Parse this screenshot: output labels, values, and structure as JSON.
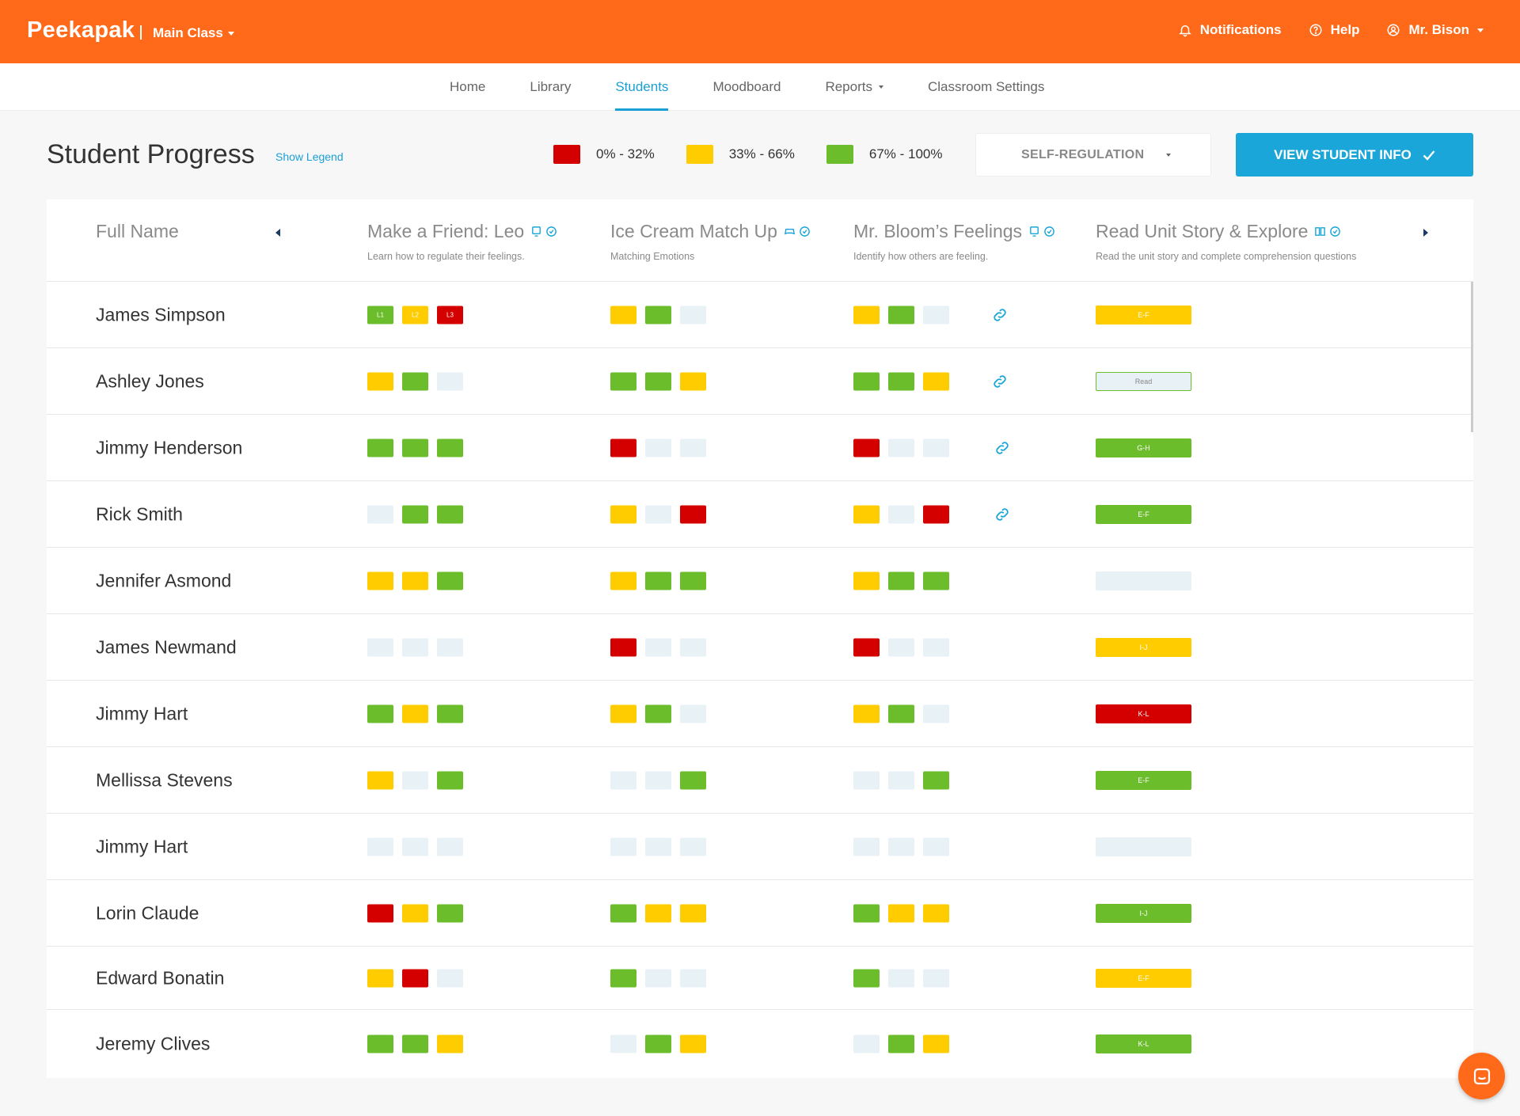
{
  "colors": {
    "red": "#d40000",
    "yellow": "#ffcc00",
    "green": "#6bbd2c",
    "empty": "#e8f1f6",
    "accent": "#1aa6d9",
    "brand": "#ff6a1a"
  },
  "header": {
    "brand": "Peekapak",
    "class_selector": "Main Class",
    "notifications": "Notifications",
    "help": "Help",
    "user": "Mr. Bison"
  },
  "nav": [
    {
      "label": "Home"
    },
    {
      "label": "Library"
    },
    {
      "label": "Students"
    },
    {
      "label": "Moodboard"
    },
    {
      "label": "Reports"
    },
    {
      "label": "Classroom Settings"
    }
  ],
  "page": {
    "title": "Student Progress",
    "show_legend": "Show Legend",
    "legend": [
      {
        "label": "0% - 32%",
        "color": "red"
      },
      {
        "label": "33% - 66%",
        "color": "yellow"
      },
      {
        "label": "67% - 100%",
        "color": "green"
      }
    ],
    "dropdown_value": "SELF-REGULATION",
    "view_button": "VIEW STUDENT INFO"
  },
  "table": {
    "name_header": "Full Name",
    "columns": [
      {
        "title": "Make a Friend: Leo",
        "subtitle": "Learn how to regulate their feelings."
      },
      {
        "title": "Ice Cream Match Up",
        "subtitle": "Matching Emotions"
      },
      {
        "title": "Mr. Bloom’s Feelings",
        "subtitle": "Identify how others are feeling."
      },
      {
        "title": "Read Unit Story & Explore",
        "subtitle": "Read the unit story and complete comprehension questions"
      }
    ],
    "rows": [
      {
        "name": "James Simpson",
        "c1": [
          "green:L1",
          "yellow:L2",
          "red:L3"
        ],
        "c2": [
          "yellow",
          "green",
          "empty"
        ],
        "c3": [
          "yellow",
          "green",
          "empty"
        ],
        "link": true,
        "read": {
          "color": "yellow",
          "label": "E-F"
        }
      },
      {
        "name": "Ashley Jones",
        "c1": [
          "yellow",
          "green",
          "empty"
        ],
        "c2": [
          "green",
          "green",
          "yellow"
        ],
        "c3": [
          "green",
          "green",
          "yellow"
        ],
        "link": true,
        "read": {
          "color": "outline",
          "label": "Read"
        }
      },
      {
        "name": "Jimmy Henderson",
        "c1": [
          "green",
          "green",
          "green"
        ],
        "c2": [
          "red",
          "empty",
          "empty"
        ],
        "c3": [
          "red",
          "empty",
          "empty"
        ],
        "link": true,
        "read": {
          "color": "green",
          "label": "G-H"
        }
      },
      {
        "name": "Rick Smith",
        "c1": [
          "empty",
          "green",
          "green"
        ],
        "c2": [
          "yellow",
          "empty",
          "red"
        ],
        "c3": [
          "yellow",
          "empty",
          "red"
        ],
        "link": true,
        "read": {
          "color": "green",
          "label": "E-F"
        }
      },
      {
        "name": "Jennifer Asmond",
        "c1": [
          "yellow",
          "yellow",
          "green"
        ],
        "c2": [
          "yellow",
          "green",
          "green"
        ],
        "c3": [
          "yellow",
          "green",
          "green"
        ],
        "link": false,
        "read": {
          "color": "empty",
          "label": ""
        }
      },
      {
        "name": "James Newmand",
        "c1": [
          "empty",
          "empty",
          "empty"
        ],
        "c2": [
          "red",
          "empty",
          "empty"
        ],
        "c3": [
          "red",
          "empty",
          "empty"
        ],
        "link": false,
        "read": {
          "color": "yellow",
          "label": "I-J"
        }
      },
      {
        "name": "Jimmy Hart",
        "c1": [
          "green",
          "yellow",
          "green"
        ],
        "c2": [
          "yellow",
          "green",
          "empty"
        ],
        "c3": [
          "yellow",
          "green",
          "empty"
        ],
        "link": false,
        "read": {
          "color": "red",
          "label": "K-L"
        }
      },
      {
        "name": "Mellissa Stevens",
        "c1": [
          "yellow",
          "empty",
          "green"
        ],
        "c2": [
          "empty",
          "empty",
          "green"
        ],
        "c3": [
          "empty",
          "empty",
          "green"
        ],
        "link": false,
        "read": {
          "color": "green",
          "label": "E-F"
        }
      },
      {
        "name": "Jimmy Hart",
        "c1": [
          "empty",
          "empty",
          "empty"
        ],
        "c2": [
          "empty",
          "empty",
          "empty"
        ],
        "c3": [
          "empty",
          "empty",
          "empty"
        ],
        "link": false,
        "read": {
          "color": "empty",
          "label": ""
        }
      },
      {
        "name": "Lorin Claude",
        "c1": [
          "red",
          "yellow",
          "green"
        ],
        "c2": [
          "green",
          "yellow",
          "yellow"
        ],
        "c3": [
          "green",
          "yellow",
          "yellow"
        ],
        "link": false,
        "read": {
          "color": "green",
          "label": "I-J"
        }
      },
      {
        "name": "Edward Bonatin",
        "c1": [
          "yellow",
          "red",
          "empty"
        ],
        "c2": [
          "green",
          "empty",
          "empty"
        ],
        "c3": [
          "green",
          "empty",
          "empty"
        ],
        "link": false,
        "read": {
          "color": "yellow",
          "label": "E-F"
        }
      },
      {
        "name": "Jeremy Clives",
        "c1": [
          "green",
          "green",
          "yellow"
        ],
        "c2": [
          "empty",
          "green",
          "yellow"
        ],
        "c3": [
          "empty",
          "green",
          "yellow"
        ],
        "link": false,
        "read": {
          "color": "green",
          "label": "K-L"
        }
      }
    ]
  }
}
